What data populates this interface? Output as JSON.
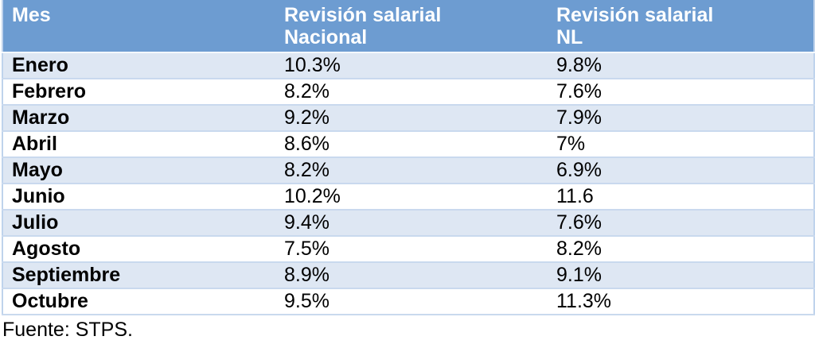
{
  "chart_data": {
    "type": "table",
    "columns": [
      "Mes",
      "Revisión salarial Nacional",
      "Revisión salarial NL"
    ],
    "columns_display": [
      "Mes",
      "Revisión salarial\nNacional",
      "Revisión salarial\nNL"
    ],
    "rows": [
      [
        "Enero",
        "10.3%",
        "9.8%"
      ],
      [
        "Febrero",
        "8.2%",
        "7.6%"
      ],
      [
        "Marzo",
        "9.2%",
        "7.9%"
      ],
      [
        "Abril",
        "8.6%",
        "7%"
      ],
      [
        "Mayo",
        "8.2%",
        "6.9%"
      ],
      [
        "Junio",
        "10.2%",
        "11.6"
      ],
      [
        "Julio",
        "9.4%",
        "7.6%"
      ],
      [
        "Agosto",
        "7.5%",
        "8.2%"
      ],
      [
        "Septiembre",
        "8.9%",
        "9.1%"
      ],
      [
        "Octubre",
        "9.5%",
        "11.3%"
      ]
    ],
    "source": "Fuente: STPS.",
    "layout": {
      "striped": true,
      "first_data_row_shaded": true
    }
  },
  "colors": {
    "header_bg": "#6D9CD1",
    "header_text": "#FFFFFF",
    "row_alt_bg": "#DEE7F3",
    "row_bg": "#FFFFFF",
    "border": "#BFD3EC",
    "text": "#000000"
  },
  "footer": {
    "source_label": "Fuente: STPS."
  }
}
